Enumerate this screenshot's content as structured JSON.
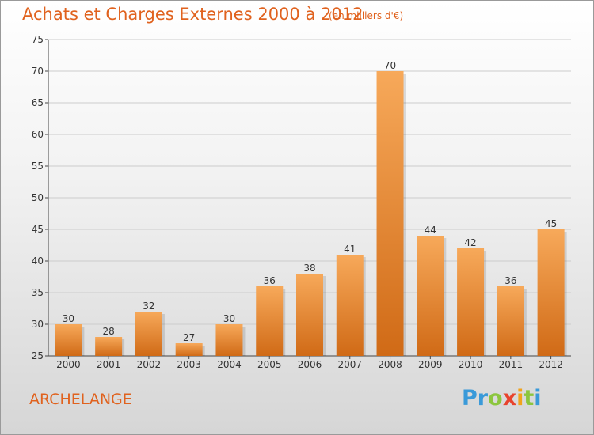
{
  "title": "Achats et Charges Externes 2000 à 2012",
  "subtitle": "(en milliers d'€)",
  "location": "ARCHELANGE",
  "logo": {
    "text": "Proxiti",
    "letters": [
      {
        "ch": "P",
        "color": "#3a9ad9"
      },
      {
        "ch": "r",
        "color": "#3a9ad9"
      },
      {
        "ch": "o",
        "color": "#8cc63e"
      },
      {
        "ch": "x",
        "color": "#e8432d"
      },
      {
        "ch": "i",
        "color": "#f2a31b"
      },
      {
        "ch": "t",
        "color": "#8cc63e"
      },
      {
        "ch": "i",
        "color": "#3a9ad9"
      }
    ]
  },
  "colors": {
    "accent": "#e0621e",
    "bar_top": "#f7a95a",
    "bar_bottom": "#d06a16",
    "grid": "#cccccc"
  },
  "chart_data": {
    "type": "bar",
    "categories": [
      "2000",
      "2001",
      "2002",
      "2003",
      "2004",
      "2005",
      "2006",
      "2007",
      "2008",
      "2009",
      "2010",
      "2011",
      "2012"
    ],
    "values": [
      30,
      28,
      32,
      27,
      30,
      36,
      38,
      41,
      70,
      44,
      42,
      36,
      45
    ],
    "ylim": [
      25,
      75
    ],
    "yticks": [
      25,
      30,
      35,
      40,
      45,
      50,
      55,
      60,
      65,
      70,
      75
    ],
    "grid": true
  }
}
